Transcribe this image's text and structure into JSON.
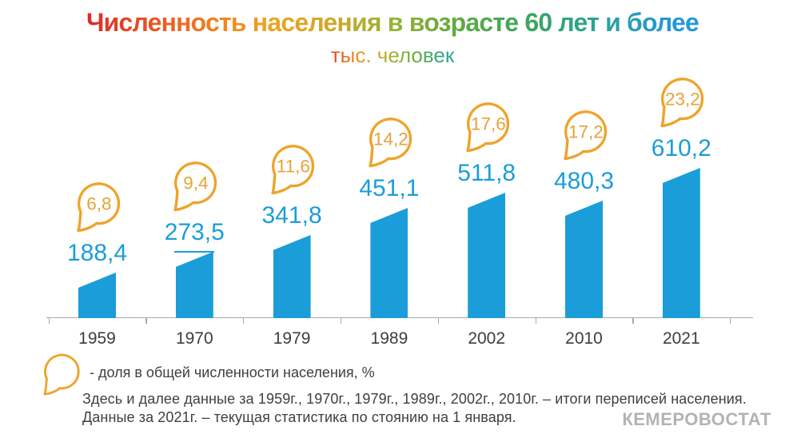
{
  "header": {
    "title": "Численность населения в возрасте 60 лет и более",
    "subtitle": "тыс. человек"
  },
  "chart_data": {
    "type": "bar",
    "categories": [
      "1959",
      "1970",
      "1979",
      "1989",
      "2002",
      "2010",
      "2021"
    ],
    "series": [
      {
        "name": "Численность населения в возрасте 60 лет и более, тыс. человек",
        "values": [
          188.4,
          273.5,
          341.8,
          451.1,
          511.8,
          480.3,
          610.2
        ],
        "labels": [
          "188,4",
          "273,5",
          "341,8",
          "451,1",
          "511,8",
          "480,3",
          "610,2"
        ]
      },
      {
        "name": "Доля в общей численности населения, %",
        "values": [
          6.8,
          9.4,
          11.6,
          14.2,
          17.6,
          17.2,
          23.2
        ],
        "labels": [
          "6,8",
          "9,4",
          "11,6",
          "14,2",
          "17,6",
          "17,2",
          "23,2"
        ]
      }
    ],
    "underlined_value_index": 1,
    "bar_color": "#1b9dd9",
    "value_label_color": "#1b9dd9",
    "bubble_stroke_color": "#efa32a",
    "bubble_text_color": "#e5a338",
    "axis": {
      "baseline_visible": true,
      "gridlines": false,
      "tick_marks": 8
    },
    "legend_position": "bottom-left",
    "title": "Численность населения в возрасте 60 лет и более",
    "ylabel": "тыс. человек"
  },
  "legend": {
    "icon": "speech-bubble-icon",
    "label": "- доля в общей численности населения, %"
  },
  "footnotes": [
    "Здесь и далее данные за 1959г., 1970г., 1979г., 1989г., 2002г., 2010г. – итоги переписей населения.",
    "Данные за 2021г. – текущая статистика по стоянию на 1 января."
  ],
  "watermark": "КЕМЕРОВОСТАТ",
  "colors": {
    "bar": "#1b9dd9",
    "bubble_stroke": "#efa32a",
    "bubble_text": "#e5a338",
    "axis": "#a9a9a9",
    "year_label": "#3d3d3d",
    "footnote": "#3f3f3f",
    "watermark": "#b3b3b3",
    "title_gradient": [
      "#da2c26",
      "#f07d1f",
      "#efa321",
      "#cfa92a",
      "#9ab136",
      "#62ab41",
      "#3ba65d",
      "#2ba48e",
      "#2697dc"
    ],
    "subtitle_gradient": [
      "#e0472b",
      "#ee8a1e",
      "#a3b136",
      "#66ad40",
      "#2aa2a8"
    ]
  }
}
